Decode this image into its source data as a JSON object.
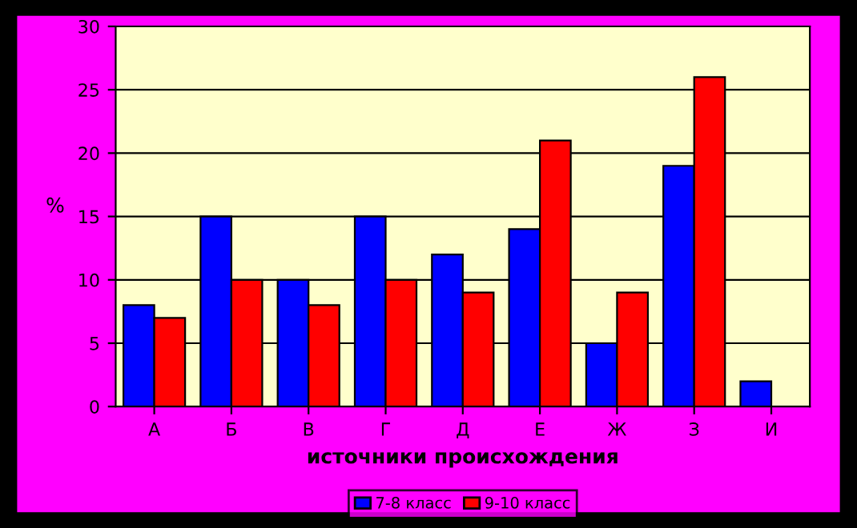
{
  "chart_data": {
    "type": "bar",
    "xlabel": "источники происхождения",
    "ylabel": "%",
    "categories": [
      "А",
      "Б",
      "В",
      "Г",
      "Д",
      "Е",
      "Ж",
      "З",
      "И"
    ],
    "series": [
      {
        "name": "7-8 класс",
        "color": "#0000ff",
        "values": [
          8,
          15,
          10,
          15,
          12,
          14,
          5,
          19,
          2
        ]
      },
      {
        "name": "9-10 класс",
        "color": "#ff0000",
        "values": [
          7,
          10,
          8,
          10,
          9,
          21,
          9,
          26,
          null
        ]
      }
    ],
    "ylim": [
      0,
      30
    ],
    "yticks": [
      0,
      5,
      10,
      15,
      20,
      25,
      30
    ],
    "grid": "y",
    "legend": "bottom"
  }
}
